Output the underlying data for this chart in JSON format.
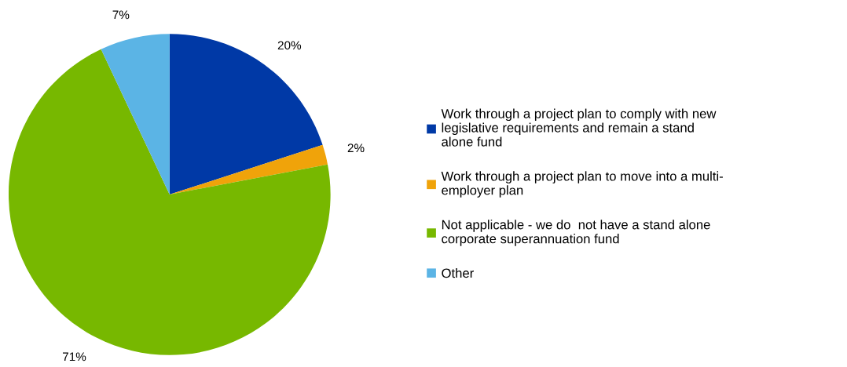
{
  "chart_data": {
    "type": "pie",
    "categories": [
      "Work through a project plan to comply with new\nlegislative requirements and remain a stand\nalone fund",
      "Work through a project plan to move into a multi-\nemployer plan",
      "Not applicable - we do  not have a stand alone\ncorporate superannuation fund",
      "Other"
    ],
    "values": [
      20,
      2,
      71,
      7
    ],
    "colors": [
      "#0039a6",
      "#f0a30a",
      "#77b800",
      "#5bb4e5"
    ],
    "value_labels": [
      "20%",
      "2%",
      "71%",
      "7%"
    ],
    "legend": "right"
  }
}
